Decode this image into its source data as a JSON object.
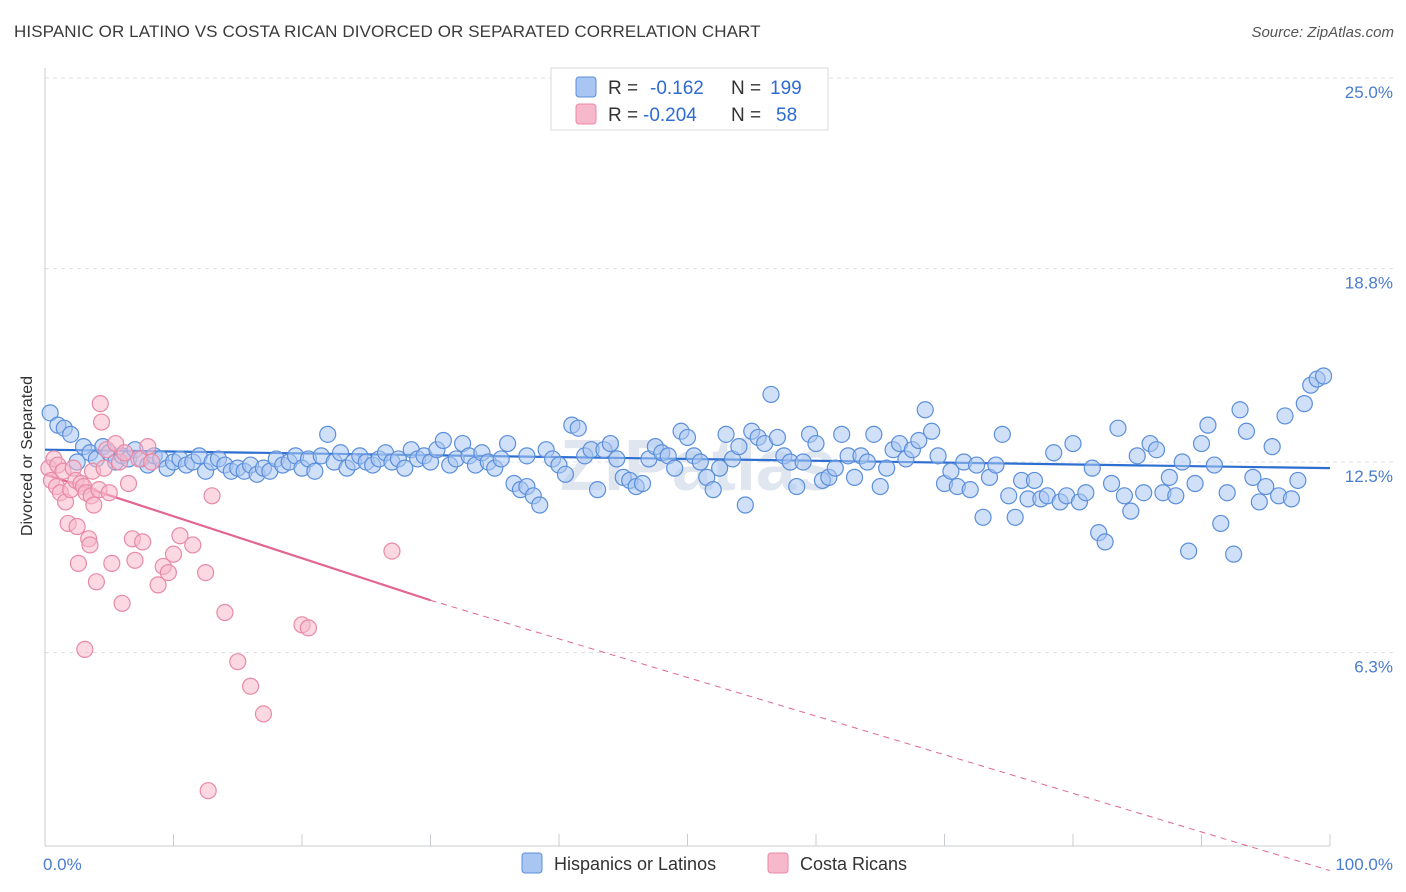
{
  "title": "HISPANIC OR LATINO VS COSTA RICAN DIVORCED OR SEPARATED CORRELATION CHART",
  "source": "Source: ZipAtlas.com",
  "watermark": "ZIPatlas",
  "colors": {
    "blue_fill": "#a9c6f2",
    "blue_stroke": "#5b8fdb",
    "blue_line": "#2d6fd1",
    "pink_fill": "#f7b8cb",
    "pink_stroke": "#e88aa7",
    "pink_line": "#e2668f",
    "grid": "#dde1e7",
    "tick_label": "#4a7ccf"
  },
  "legend": {
    "row1": {
      "r_label": "R =",
      "r_value": "-0.162",
      "n_label": "N =",
      "n_value": "199"
    },
    "row2": {
      "r_label": "R =",
      "r_value": "-0.204",
      "n_label": "N =",
      "n_value": "58"
    }
  },
  "chart_data": {
    "type": "scatter",
    "xlabel": "",
    "ylabel": "Divorced or Separated",
    "xlim": [
      0,
      100
    ],
    "ylim": [
      0,
      26
    ],
    "x_tick_labels": [
      {
        "value": 0,
        "label": "0.0%"
      },
      {
        "value": 100,
        "label": "100.0%"
      }
    ],
    "y_tick_labels": [
      {
        "value": 6.3,
        "label": "6.3%"
      },
      {
        "value": 12.5,
        "label": "12.5%"
      },
      {
        "value": 18.8,
        "label": "18.8%"
      },
      {
        "value": 25.0,
        "label": "25.0%"
      }
    ],
    "grid": true,
    "legend_position": "top-center",
    "series": [
      {
        "name": "Hispanics or Latinos",
        "color": "#a9c6f2",
        "trend": {
          "x0": 0,
          "y0": 12.9,
          "x1": 100,
          "y1": 12.3
        },
        "points": [
          [
            0.4,
            14.1
          ],
          [
            1,
            13.7
          ],
          [
            1.5,
            13.6
          ],
          [
            2,
            13.4
          ],
          [
            2.5,
            12.5
          ],
          [
            3,
            13
          ],
          [
            3.5,
            12.8
          ],
          [
            4,
            12.6
          ],
          [
            4.5,
            13
          ],
          [
            5,
            12.8
          ],
          [
            5.5,
            12.5
          ],
          [
            6,
            12.7
          ],
          [
            6.5,
            12.6
          ],
          [
            7,
            12.9
          ],
          [
            7.5,
            12.6
          ],
          [
            8,
            12.4
          ],
          [
            8.5,
            12.7
          ],
          [
            9,
            12.6
          ],
          [
            9.5,
            12.3
          ],
          [
            10,
            12.5
          ],
          [
            10.5,
            12.6
          ],
          [
            11,
            12.4
          ],
          [
            11.5,
            12.5
          ],
          [
            12,
            12.7
          ],
          [
            12.5,
            12.2
          ],
          [
            13,
            12.5
          ],
          [
            13.5,
            12.6
          ],
          [
            14,
            12.4
          ],
          [
            14.5,
            12.2
          ],
          [
            15,
            12.3
          ],
          [
            15.5,
            12.2
          ],
          [
            16,
            12.4
          ],
          [
            16.5,
            12.1
          ],
          [
            17,
            12.3
          ],
          [
            17.5,
            12.2
          ],
          [
            18,
            12.6
          ],
          [
            18.5,
            12.4
          ],
          [
            19,
            12.5
          ],
          [
            19.5,
            12.7
          ],
          [
            20,
            12.3
          ],
          [
            20.5,
            12.6
          ],
          [
            21,
            12.2
          ],
          [
            21.5,
            12.7
          ],
          [
            22,
            13.4
          ],
          [
            22.5,
            12.5
          ],
          [
            23,
            12.8
          ],
          [
            23.5,
            12.3
          ],
          [
            24,
            12.5
          ],
          [
            24.5,
            12.7
          ],
          [
            25,
            12.5
          ],
          [
            25.5,
            12.4
          ],
          [
            26,
            12.6
          ],
          [
            26.5,
            12.8
          ],
          [
            27,
            12.5
          ],
          [
            27.5,
            12.6
          ],
          [
            28,
            12.3
          ],
          [
            28.5,
            12.9
          ],
          [
            29,
            12.6
          ],
          [
            29.5,
            12.7
          ],
          [
            30,
            12.5
          ],
          [
            30.5,
            12.9
          ],
          [
            31,
            13.2
          ],
          [
            31.5,
            12.4
          ],
          [
            32,
            12.6
          ],
          [
            32.5,
            13.1
          ],
          [
            33,
            12.7
          ],
          [
            33.5,
            12.4
          ],
          [
            34,
            12.8
          ],
          [
            34.5,
            12.5
          ],
          [
            35,
            12.3
          ],
          [
            35.5,
            12.6
          ],
          [
            36,
            13.1
          ],
          [
            36.5,
            11.8
          ],
          [
            37,
            11.6
          ],
          [
            37.5,
            11.7
          ],
          [
            38,
            11.4
          ],
          [
            38.5,
            11.1
          ],
          [
            39,
            12.9
          ],
          [
            39.5,
            12.6
          ],
          [
            40,
            12.4
          ],
          [
            40.5,
            12.1
          ],
          [
            41,
            13.7
          ],
          [
            41.5,
            13.6
          ],
          [
            42,
            12.7
          ],
          [
            42.5,
            12.9
          ],
          [
            43,
            11.6
          ],
          [
            43.5,
            12.9
          ],
          [
            44,
            13.1
          ],
          [
            44.5,
            12.6
          ],
          [
            45,
            12.0
          ],
          [
            45.5,
            11.9
          ],
          [
            46,
            11.7
          ],
          [
            46.5,
            11.8
          ],
          [
            47,
            12.6
          ],
          [
            47.5,
            13.0
          ],
          [
            48,
            12.8
          ],
          [
            48.5,
            12.7
          ],
          [
            49,
            12.3
          ],
          [
            49.5,
            13.5
          ],
          [
            50,
            13.3
          ],
          [
            50.5,
            12.7
          ],
          [
            51,
            12.5
          ],
          [
            51.5,
            12.0
          ],
          [
            52,
            11.6
          ],
          [
            52.5,
            12.3
          ],
          [
            53,
            13.4
          ],
          [
            53.5,
            12.6
          ],
          [
            54,
            13.0
          ],
          [
            54.5,
            11.1
          ],
          [
            55,
            13.5
          ],
          [
            55.5,
            13.3
          ],
          [
            56,
            13.1
          ],
          [
            56.5,
            14.7
          ],
          [
            57,
            13.3
          ],
          [
            57.5,
            12.7
          ],
          [
            58,
            12.5
          ],
          [
            58.5,
            11.7
          ],
          [
            59,
            12.5
          ],
          [
            59.5,
            13.4
          ],
          [
            60,
            13.1
          ],
          [
            60.5,
            11.9
          ],
          [
            61,
            12.0
          ],
          [
            61.5,
            12.3
          ],
          [
            62,
            13.4
          ],
          [
            62.5,
            12.7
          ],
          [
            63,
            12.0
          ],
          [
            63.5,
            12.7
          ],
          [
            64,
            12.5
          ],
          [
            64.5,
            13.4
          ],
          [
            65,
            11.7
          ],
          [
            65.5,
            12.3
          ],
          [
            66,
            12.9
          ],
          [
            66.5,
            13.1
          ],
          [
            67,
            12.6
          ],
          [
            67.5,
            12.9
          ],
          [
            68,
            13.2
          ],
          [
            68.5,
            14.2
          ],
          [
            69,
            13.5
          ],
          [
            69.5,
            12.7
          ],
          [
            70,
            11.8
          ],
          [
            70.5,
            12.2
          ],
          [
            71,
            11.7
          ],
          [
            71.5,
            12.5
          ],
          [
            72,
            11.6
          ],
          [
            72.5,
            12.4
          ],
          [
            73,
            10.7
          ],
          [
            73.5,
            12.0
          ],
          [
            74,
            12.4
          ],
          [
            74.5,
            13.4
          ],
          [
            75,
            11.4
          ],
          [
            75.5,
            10.7
          ],
          [
            76,
            11.9
          ],
          [
            76.5,
            11.3
          ],
          [
            77,
            11.9
          ],
          [
            77.5,
            11.3
          ],
          [
            78,
            11.4
          ],
          [
            78.5,
            12.8
          ],
          [
            79,
            11.2
          ],
          [
            79.5,
            11.4
          ],
          [
            80,
            13.1
          ],
          [
            80.5,
            11.2
          ],
          [
            81,
            11.5
          ],
          [
            81.5,
            12.3
          ],
          [
            82,
            10.2
          ],
          [
            82.5,
            9.9
          ],
          [
            83,
            11.8
          ],
          [
            83.5,
            13.6
          ],
          [
            84,
            11.4
          ],
          [
            84.5,
            10.9
          ],
          [
            85,
            12.7
          ],
          [
            85.5,
            11.5
          ],
          [
            86,
            13.1
          ],
          [
            86.5,
            12.9
          ],
          [
            87,
            11.5
          ],
          [
            87.5,
            12.0
          ],
          [
            88,
            11.4
          ],
          [
            88.5,
            12.5
          ],
          [
            89,
            9.6
          ],
          [
            89.5,
            11.8
          ],
          [
            90,
            13.1
          ],
          [
            90.5,
            13.7
          ],
          [
            91,
            12.4
          ],
          [
            91.5,
            10.5
          ],
          [
            92,
            11.5
          ],
          [
            92.5,
            9.5
          ],
          [
            93,
            14.2
          ],
          [
            93.5,
            13.5
          ],
          [
            94,
            12.0
          ],
          [
            94.5,
            11.2
          ],
          [
            95,
            11.7
          ],
          [
            95.5,
            13.0
          ],
          [
            96,
            11.4
          ],
          [
            96.5,
            14.0
          ],
          [
            97,
            11.3
          ],
          [
            97.5,
            11.9
          ],
          [
            98,
            14.4
          ],
          [
            98.5,
            15.0
          ],
          [
            99,
            15.2
          ],
          [
            99.5,
            15.3
          ],
          [
            37.5,
            12.7
          ]
        ]
      },
      {
        "name": "Costa Ricans",
        "color": "#f7b8cb",
        "trend": {
          "x0": 0,
          "y0": 12.1,
          "x1": 30,
          "y1": 8.0,
          "dash_x1": 100,
          "dash_y1": -0.8
        },
        "points": [
          [
            0.3,
            12.3
          ],
          [
            0.5,
            11.9
          ],
          [
            0.7,
            12.6
          ],
          [
            0.9,
            11.7
          ],
          [
            1.0,
            12.4
          ],
          [
            1.2,
            11.5
          ],
          [
            1.4,
            12.2
          ],
          [
            1.6,
            11.2
          ],
          [
            1.8,
            10.5
          ],
          [
            2.0,
            11.6
          ],
          [
            2.2,
            12.3
          ],
          [
            2.4,
            11.9
          ],
          [
            2.5,
            10.4
          ],
          [
            2.6,
            9.2
          ],
          [
            2.8,
            11.8
          ],
          [
            3.0,
            11.7
          ],
          [
            3.1,
            6.4
          ],
          [
            3.2,
            11.5
          ],
          [
            3.4,
            10.0
          ],
          [
            3.5,
            9.8
          ],
          [
            3.6,
            11.4
          ],
          [
            3.7,
            12.2
          ],
          [
            3.8,
            11.1
          ],
          [
            4.0,
            8.6
          ],
          [
            4.2,
            11.6
          ],
          [
            4.3,
            14.4
          ],
          [
            4.4,
            13.8
          ],
          [
            4.6,
            12.3
          ],
          [
            4.8,
            12.9
          ],
          [
            5.0,
            11.5
          ],
          [
            5.2,
            9.2
          ],
          [
            5.5,
            13.1
          ],
          [
            5.8,
            12.5
          ],
          [
            6.0,
            7.9
          ],
          [
            6.2,
            12.8
          ],
          [
            6.5,
            11.8
          ],
          [
            6.8,
            10.0
          ],
          [
            7.0,
            9.3
          ],
          [
            7.3,
            12.6
          ],
          [
            7.6,
            9.9
          ],
          [
            8.0,
            13.0
          ],
          [
            8.3,
            12.5
          ],
          [
            8.8,
            8.5
          ],
          [
            9.2,
            9.1
          ],
          [
            9.6,
            8.9
          ],
          [
            10.0,
            9.5
          ],
          [
            10.5,
            10.1
          ],
          [
            11.5,
            9.8
          ],
          [
            12.5,
            8.9
          ],
          [
            13.0,
            11.4
          ],
          [
            14.0,
            7.6
          ],
          [
            15.0,
            6.0
          ],
          [
            16.0,
            5.2
          ],
          [
            17.0,
            4.3
          ],
          [
            20.0,
            7.2
          ],
          [
            20.5,
            7.1
          ],
          [
            27.0,
            9.6
          ],
          [
            12.7,
            1.8
          ]
        ]
      }
    ]
  },
  "bottom_legend": {
    "items": [
      "Hispanics or Latinos",
      "Costa Ricans"
    ]
  }
}
